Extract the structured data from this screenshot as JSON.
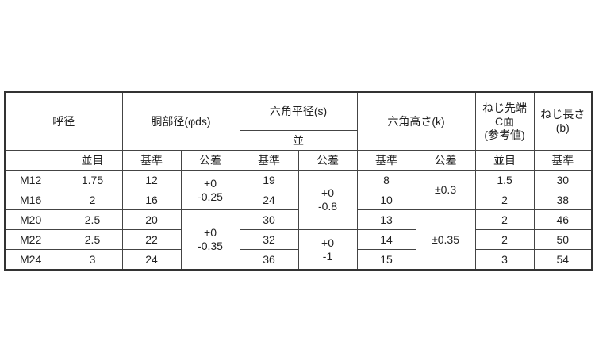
{
  "header": {
    "nominal": "呼径",
    "body_dia": "胴部径(φds)",
    "hex_width": "六角平径(s)",
    "hex_width_sub": "並",
    "hex_height": "六角高さ(k)",
    "chamfer": [
      "ねじ先端",
      "C面",
      "(参考値)"
    ],
    "thread_len": [
      "ねじ長さ",
      "(b)"
    ]
  },
  "subheader": [
    "",
    "並目",
    "基準",
    "公差",
    "基準",
    "公差",
    "基準",
    "公差",
    "並目",
    "基準"
  ],
  "rows": [
    {
      "size": "M12",
      "pitch": "1.75",
      "ds": "12",
      "s": "19",
      "k": "8",
      "c": "1.5",
      "b": "30"
    },
    {
      "size": "M16",
      "pitch": "2",
      "ds": "16",
      "s": "24",
      "k": "10",
      "c": "2",
      "b": "38"
    },
    {
      "size": "M20",
      "pitch": "2.5",
      "ds": "20",
      "s": "30",
      "k": "13",
      "c": "2",
      "b": "46"
    },
    {
      "size": "M22",
      "pitch": "2.5",
      "ds": "22",
      "s": "32",
      "k": "14",
      "c": "2",
      "b": "50"
    },
    {
      "size": "M24",
      "pitch": "3",
      "ds": "24",
      "s": "36",
      "k": "15",
      "c": "3",
      "b": "54"
    }
  ],
  "tolerances": {
    "ds": [
      [
        "+0",
        "-0.25"
      ],
      [
        "+0",
        "-0.35"
      ]
    ],
    "s": [
      [
        "+0",
        "-0.8"
      ],
      [
        "+0",
        "-1"
      ]
    ],
    "k": [
      "±0.3",
      "±0.35"
    ]
  }
}
